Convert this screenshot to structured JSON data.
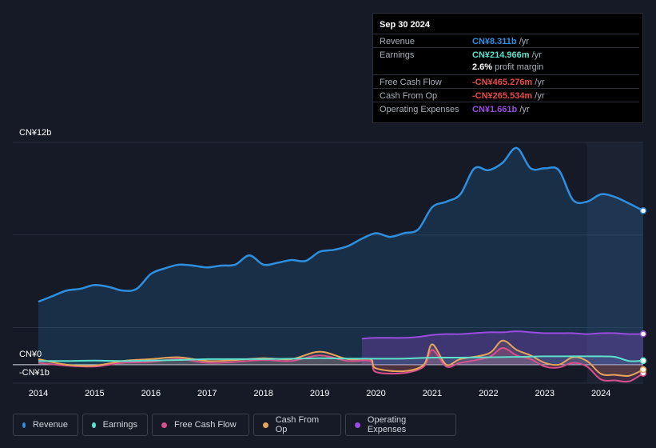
{
  "colors": {
    "revenue": "#2e8fe0",
    "earnings": "#5de0cc",
    "free_cash_flow": "#d8508e",
    "cash_from_op": "#e6a45c",
    "operating_expenses": "#9a4be0"
  },
  "tooltip": {
    "date": "Sep 30 2024",
    "rows": [
      {
        "label": "Revenue",
        "value": "CN¥8.311b",
        "unit": "/yr",
        "color": "#2e8fe0"
      },
      {
        "label": "Earnings",
        "value": "CN¥214.966m",
        "unit": "/yr",
        "color": "#5de0cc"
      },
      {
        "label": "Free Cash Flow",
        "value": "-CN¥465.276m",
        "unit": "/yr",
        "color": "#e84a4a"
      },
      {
        "label": "Cash From Op",
        "value": "-CN¥265.534m",
        "unit": "/yr",
        "color": "#e84a4a"
      },
      {
        "label": "Operating Expenses",
        "value": "CN¥1.661b",
        "unit": "/yr",
        "color": "#9a4be0"
      }
    ],
    "margin_value": "2.6%",
    "margin_text": "profit margin"
  },
  "legend": [
    {
      "label": "Revenue",
      "color": "#2e8fe0"
    },
    {
      "label": "Earnings",
      "color": "#5de0cc"
    },
    {
      "label": "Free Cash Flow",
      "color": "#d8508e"
    },
    {
      "label": "Cash From Op",
      "color": "#e6a45c"
    },
    {
      "label": "Operating Expenses",
      "color": "#9a4be0"
    }
  ],
  "chart_data": {
    "type": "area",
    "title": "",
    "y_top_label": "CN¥12b",
    "y_zero_label": "CN¥0",
    "y_bottom_label": "-CN¥1b",
    "ylim": [
      -1,
      12
    ],
    "x_ticks": [
      "2014",
      "2015",
      "2016",
      "2017",
      "2018",
      "2019",
      "2020",
      "2021",
      "2022",
      "2023",
      "2024"
    ],
    "x_range": [
      2014.0,
      2024.75
    ],
    "series": [
      {
        "name": "Revenue",
        "unit": "CN¥b",
        "x": [
          2014.0,
          2014.25,
          2014.5,
          2014.75,
          2015.0,
          2015.25,
          2015.5,
          2015.75,
          2016.0,
          2016.25,
          2016.5,
          2016.75,
          2017.0,
          2017.25,
          2017.5,
          2017.75,
          2018.0,
          2018.25,
          2018.5,
          2018.75,
          2019.0,
          2019.25,
          2019.5,
          2019.75,
          2020.0,
          2020.25,
          2020.5,
          2020.75,
          2021.0,
          2021.25,
          2021.5,
          2021.75,
          2022.0,
          2022.25,
          2022.5,
          2022.75,
          2023.0,
          2023.25,
          2023.5,
          2023.75,
          2024.0,
          2024.25,
          2024.5,
          2024.75
        ],
        "values": [
          3.4,
          3.7,
          4.0,
          4.1,
          4.3,
          4.2,
          4.0,
          4.1,
          4.9,
          5.2,
          5.4,
          5.35,
          5.25,
          5.35,
          5.4,
          5.9,
          5.4,
          5.5,
          5.65,
          5.6,
          6.1,
          6.2,
          6.4,
          6.8,
          7.1,
          6.9,
          7.1,
          7.3,
          8.5,
          8.8,
          9.2,
          10.6,
          10.5,
          10.9,
          11.7,
          10.6,
          10.6,
          10.5,
          8.9,
          8.8,
          9.2,
          9.05,
          8.7,
          8.311
        ]
      },
      {
        "name": "Earnings",
        "unit": "CN¥b",
        "x": [
          2014.0,
          2014.5,
          2015.0,
          2015.5,
          2016.0,
          2016.5,
          2017.0,
          2017.5,
          2018.0,
          2018.5,
          2019.0,
          2019.5,
          2020.0,
          2020.5,
          2021.0,
          2021.5,
          2022.0,
          2022.5,
          2023.0,
          2023.5,
          2024.0,
          2024.25,
          2024.5,
          2024.75
        ],
        "values": [
          0.2,
          0.2,
          0.22,
          0.2,
          0.22,
          0.25,
          0.3,
          0.3,
          0.3,
          0.32,
          0.35,
          0.33,
          0.32,
          0.33,
          0.38,
          0.38,
          0.4,
          0.42,
          0.45,
          0.45,
          0.45,
          0.42,
          0.2,
          0.215
        ]
      },
      {
        "name": "Free Cash Flow",
        "unit": "CN¥b",
        "x": [
          2014.0,
          2014.5,
          2015.0,
          2015.5,
          2016.0,
          2016.5,
          2017.0,
          2017.5,
          2018.0,
          2018.5,
          2019.0,
          2019.5,
          2019.9,
          2020.0,
          2020.5,
          2020.85,
          2021.0,
          2021.25,
          2021.5,
          2022.0,
          2022.25,
          2022.5,
          2022.75,
          2023.0,
          2023.25,
          2023.5,
          2023.75,
          2024.0,
          2024.25,
          2024.5,
          2024.75
        ],
        "values": [
          0.1,
          -0.05,
          -0.1,
          0.1,
          0.15,
          0.3,
          0.1,
          0.15,
          0.25,
          0.2,
          0.5,
          0.2,
          0.2,
          -0.4,
          -0.45,
          -0.1,
          0.8,
          -0.1,
          0.1,
          0.4,
          0.9,
          0.5,
          0.3,
          -0.1,
          -0.15,
          0.1,
          -0.1,
          -0.8,
          -0.85,
          -0.9,
          -0.465
        ]
      },
      {
        "name": "Cash From Op",
        "unit": "CN¥b",
        "x": [
          2014.0,
          2014.5,
          2015.0,
          2015.5,
          2016.0,
          2016.5,
          2017.0,
          2017.5,
          2018.0,
          2018.5,
          2019.0,
          2019.5,
          2019.9,
          2020.0,
          2020.5,
          2020.85,
          2021.0,
          2021.25,
          2021.5,
          2022.0,
          2022.25,
          2022.5,
          2022.75,
          2023.0,
          2023.25,
          2023.5,
          2023.75,
          2024.0,
          2024.25,
          2024.5,
          2024.75
        ],
        "values": [
          0.3,
          0.0,
          -0.05,
          0.2,
          0.3,
          0.4,
          0.2,
          0.25,
          0.35,
          0.3,
          0.7,
          0.3,
          0.3,
          -0.2,
          -0.35,
          0.0,
          1.1,
          0.0,
          0.3,
          0.6,
          1.3,
          0.8,
          0.5,
          0.1,
          0.0,
          0.4,
          0.2,
          -0.5,
          -0.55,
          -0.6,
          -0.266
        ]
      },
      {
        "name": "Operating Expenses",
        "unit": "CN¥b",
        "x": [
          2019.75,
          2020.0,
          2020.5,
          2020.75,
          2021.0,
          2021.25,
          2021.5,
          2021.75,
          2022.0,
          2022.25,
          2022.5,
          2022.75,
          2023.0,
          2023.25,
          2023.5,
          2023.75,
          2024.0,
          2024.25,
          2024.5,
          2024.75
        ],
        "values": [
          1.4,
          1.45,
          1.45,
          1.5,
          1.6,
          1.65,
          1.65,
          1.7,
          1.75,
          1.75,
          1.8,
          1.75,
          1.7,
          1.7,
          1.7,
          1.65,
          1.7,
          1.7,
          1.65,
          1.661
        ]
      }
    ]
  }
}
